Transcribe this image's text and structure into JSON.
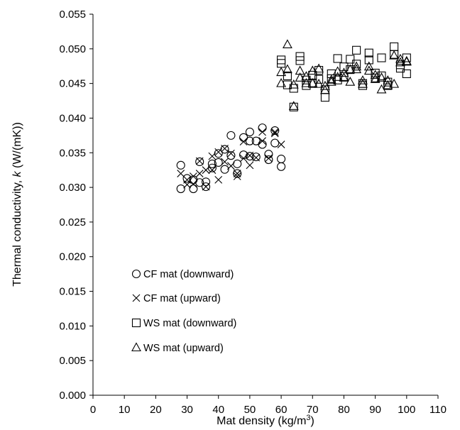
{
  "chart_data": {
    "type": "scatter",
    "xlabel_main": "Mat density (kg/m",
    "xlabel_sup": "3",
    "xlabel_end": ")",
    "ylabel_pre": "Thermal conductivity, ",
    "ylabel_k": "k",
    "ylabel_post": " (W/(mK))",
    "xlim": [
      0,
      110
    ],
    "ylim": [
      0,
      0.055
    ],
    "xticks": [
      0,
      10,
      20,
      30,
      40,
      50,
      60,
      70,
      80,
      90,
      100,
      110
    ],
    "yticks": [
      "0.000",
      "0.005",
      "0.010",
      "0.015",
      "0.020",
      "0.025",
      "0.030",
      "0.035",
      "0.040",
      "0.045",
      "0.050",
      "0.055"
    ],
    "grid": false,
    "legend_position": "lower-left",
    "series": [
      {
        "name": "CF mat (downward)",
        "marker": "circle",
        "points": [
          [
            28,
            0.0298
          ],
          [
            28,
            0.0332
          ],
          [
            30,
            0.0313
          ],
          [
            32,
            0.0298
          ],
          [
            32,
            0.0311
          ],
          [
            34,
            0.0337
          ],
          [
            34,
            0.0307
          ],
          [
            36,
            0.0301
          ],
          [
            36,
            0.0308
          ],
          [
            38,
            0.0328
          ],
          [
            38,
            0.0334
          ],
          [
            40,
            0.0336
          ],
          [
            40,
            0.0349
          ],
          [
            42,
            0.0355
          ],
          [
            42,
            0.0326
          ],
          [
            44,
            0.0346
          ],
          [
            44,
            0.0375
          ],
          [
            46,
            0.032
          ],
          [
            46,
            0.0334
          ],
          [
            48,
            0.0347
          ],
          [
            48,
            0.0372
          ],
          [
            50,
            0.038
          ],
          [
            50,
            0.0367
          ],
          [
            50,
            0.0345
          ],
          [
            52,
            0.0367
          ],
          [
            52,
            0.0344
          ],
          [
            54,
            0.0386
          ],
          [
            54,
            0.0362
          ],
          [
            56,
            0.0348
          ],
          [
            56,
            0.034
          ],
          [
            58,
            0.0382
          ],
          [
            58,
            0.0364
          ],
          [
            60,
            0.0341
          ],
          [
            60,
            0.033
          ]
        ]
      },
      {
        "name": "CF mat (upward)",
        "marker": "x",
        "points": [
          [
            28,
            0.032
          ],
          [
            30,
            0.0311
          ],
          [
            30,
            0.0304
          ],
          [
            32,
            0.0316
          ],
          [
            32,
            0.0305
          ],
          [
            34,
            0.032
          ],
          [
            34,
            0.0338
          ],
          [
            36,
            0.0325
          ],
          [
            36,
            0.0301
          ],
          [
            38,
            0.0345
          ],
          [
            38,
            0.0325
          ],
          [
            40,
            0.0351
          ],
          [
            40,
            0.0311
          ],
          [
            42,
            0.0356
          ],
          [
            42,
            0.0337
          ],
          [
            44,
            0.0349
          ],
          [
            44,
            0.0331
          ],
          [
            46,
            0.0316
          ],
          [
            46,
            0.032
          ],
          [
            48,
            0.0366
          ],
          [
            48,
            0.0342
          ],
          [
            50,
            0.0332
          ],
          [
            50,
            0.0346
          ],
          [
            52,
            0.0343
          ],
          [
            54,
            0.0367
          ],
          [
            54,
            0.038
          ],
          [
            56,
            0.0342
          ],
          [
            58,
            0.038
          ],
          [
            58,
            0.0378
          ],
          [
            60,
            0.0362
          ]
        ]
      },
      {
        "name": "WS mat (downward)",
        "marker": "square",
        "points": [
          [
            60,
            0.0484
          ],
          [
            60,
            0.0479
          ],
          [
            62,
            0.0461
          ],
          [
            62,
            0.0448
          ],
          [
            64,
            0.0443
          ],
          [
            64,
            0.0416
          ],
          [
            66,
            0.0489
          ],
          [
            66,
            0.0483
          ],
          [
            68,
            0.0447
          ],
          [
            68,
            0.0455
          ],
          [
            70,
            0.0462
          ],
          [
            70,
            0.045
          ],
          [
            72,
            0.0469
          ],
          [
            72,
            0.0456
          ],
          [
            74,
            0.043
          ],
          [
            74,
            0.0441
          ],
          [
            76,
            0.0457
          ],
          [
            76,
            0.0464
          ],
          [
            78,
            0.0486
          ],
          [
            78,
            0.0455
          ],
          [
            80,
            0.0474
          ],
          [
            80,
            0.046
          ],
          [
            82,
            0.0485
          ],
          [
            82,
            0.047
          ],
          [
            84,
            0.0498
          ],
          [
            84,
            0.0478
          ],
          [
            86,
            0.045
          ],
          [
            86,
            0.0447
          ],
          [
            88,
            0.0494
          ],
          [
            88,
            0.0484
          ],
          [
            90,
            0.0465
          ],
          [
            90,
            0.0458
          ],
          [
            92,
            0.0487
          ],
          [
            92,
            0.0461
          ],
          [
            94,
            0.0452
          ],
          [
            94,
            0.0447
          ],
          [
            96,
            0.0503
          ],
          [
            96,
            0.0492
          ],
          [
            98,
            0.0477
          ],
          [
            98,
            0.0472
          ],
          [
            100,
            0.0487
          ],
          [
            100,
            0.0464
          ]
        ]
      },
      {
        "name": "WS mat (upward)",
        "marker": "triangle",
        "points": [
          [
            60,
            0.0466
          ],
          [
            60,
            0.045
          ],
          [
            62,
            0.0506
          ],
          [
            62,
            0.047
          ],
          [
            64,
            0.0448
          ],
          [
            64,
            0.0417
          ],
          [
            66,
            0.0468
          ],
          [
            66,
            0.0458
          ],
          [
            68,
            0.046
          ],
          [
            68,
            0.045
          ],
          [
            70,
            0.0468
          ],
          [
            70,
            0.045
          ],
          [
            72,
            0.0471
          ],
          [
            72,
            0.0449
          ],
          [
            74,
            0.044
          ],
          [
            74,
            0.0446
          ],
          [
            76,
            0.0455
          ],
          [
            76,
            0.0452
          ],
          [
            78,
            0.0467
          ],
          [
            78,
            0.0459
          ],
          [
            80,
            0.0465
          ],
          [
            80,
            0.0458
          ],
          [
            82,
            0.047
          ],
          [
            82,
            0.0452
          ],
          [
            84,
            0.0474
          ],
          [
            84,
            0.047
          ],
          [
            86,
            0.0454
          ],
          [
            86,
            0.0449
          ],
          [
            88,
            0.0474
          ],
          [
            88,
            0.0468
          ],
          [
            90,
            0.0462
          ],
          [
            90,
            0.0456
          ],
          [
            92,
            0.0458
          ],
          [
            92,
            0.0441
          ],
          [
            94,
            0.0454
          ],
          [
            94,
            0.0447
          ],
          [
            96,
            0.049
          ],
          [
            96,
            0.0449
          ],
          [
            98,
            0.048
          ],
          [
            98,
            0.0485
          ],
          [
            100,
            0.0482
          ],
          [
            100,
            0.0481
          ]
        ]
      }
    ]
  }
}
